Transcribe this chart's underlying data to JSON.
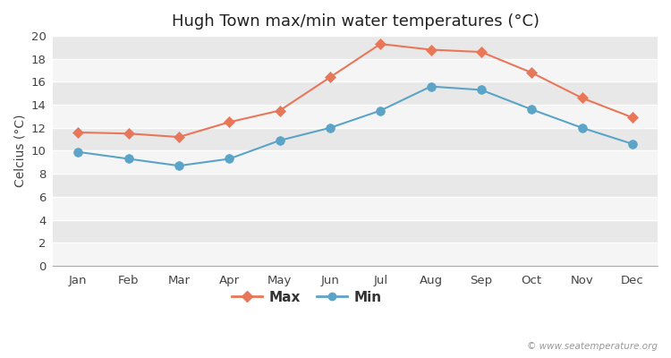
{
  "title": "Hugh Town max/min water temperatures (°C)",
  "ylabel": "Celcius (°C)",
  "months": [
    "Jan",
    "Feb",
    "Mar",
    "Apr",
    "May",
    "Jun",
    "Jul",
    "Aug",
    "Sep",
    "Oct",
    "Nov",
    "Dec"
  ],
  "max_temps": [
    11.6,
    11.5,
    11.2,
    12.5,
    13.5,
    16.4,
    19.3,
    18.8,
    18.6,
    16.8,
    14.6,
    12.9
  ],
  "min_temps": [
    9.9,
    9.3,
    8.7,
    9.3,
    10.9,
    12.0,
    13.5,
    15.6,
    15.3,
    13.6,
    12.0,
    10.6
  ],
  "max_color": "#E8775A",
  "min_color": "#5BA4C8",
  "fig_bg_color": "#FFFFFF",
  "plot_bg_color": "#EBEBEB",
  "band_color_light": "#F5F5F5",
  "band_color_dark": "#E8E8E8",
  "grid_line_color": "#FFFFFF",
  "ylim": [
    0,
    20
  ],
  "yticks": [
    0,
    2,
    4,
    6,
    8,
    10,
    12,
    14,
    16,
    18,
    20
  ],
  "legend_labels": [
    "Max",
    "Min"
  ],
  "watermark": "© www.seatemperature.org",
  "title_fontsize": 13,
  "axis_label_fontsize": 10,
  "tick_fontsize": 9.5
}
